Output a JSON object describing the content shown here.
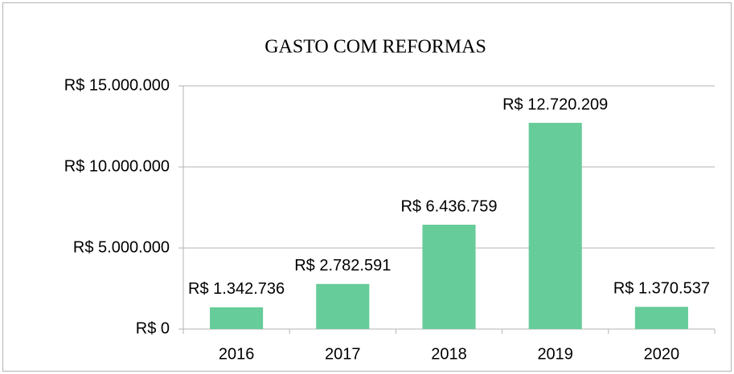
{
  "chart_data": {
    "type": "bar",
    "title": "GASTO COM REFORMAS",
    "categories": [
      "2016",
      "2017",
      "2018",
      "2019",
      "2020"
    ],
    "values": [
      1342736,
      2782591,
      6436759,
      12720209,
      1370537
    ],
    "value_labels": [
      "R$ 1.342.736",
      "R$ 2.782.591",
      "R$ 6.436.759",
      "R$ 12.720.209",
      "R$ 1.370.537"
    ],
    "color": "#66cc99",
    "ylim": [
      0,
      15000000
    ],
    "yticks": [
      {
        "value": 0,
        "label": "R$ 0"
      },
      {
        "value": 5000000,
        "label": "R$ 5.000.000"
      },
      {
        "value": 10000000,
        "label": "R$ 10.000.000"
      },
      {
        "value": 15000000,
        "label": "R$ 15.000.000"
      }
    ],
    "grid": true
  }
}
